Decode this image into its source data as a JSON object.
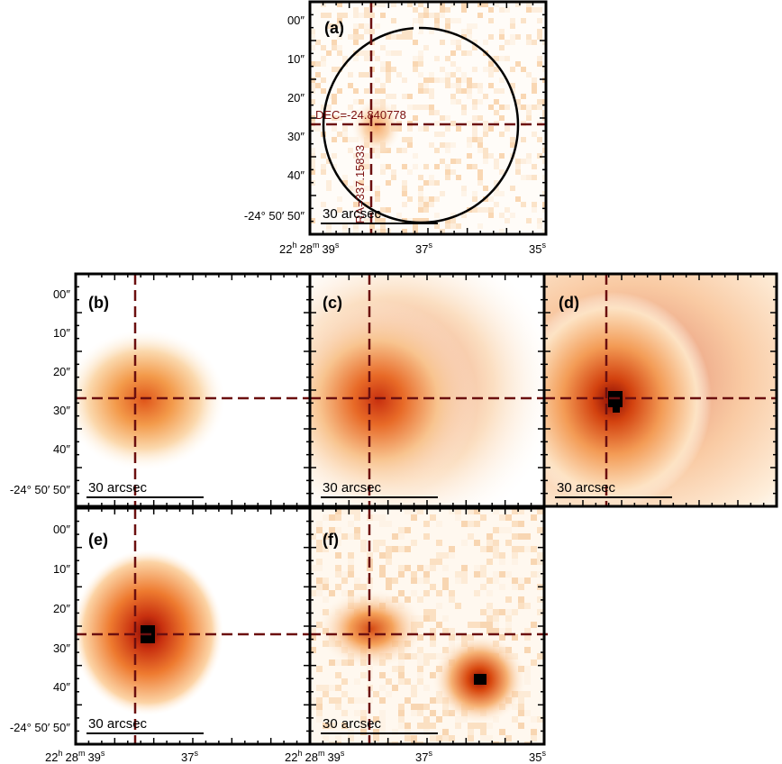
{
  "figure": {
    "ra_label": {
      "h": "22",
      "m": "28",
      "s": "39",
      "hsup": "h",
      "msup": "m",
      "ssup": "s"
    },
    "ra_ticks": [
      {
        "value": "37",
        "sup": "s"
      },
      {
        "value": "35",
        "sup": "s"
      }
    ],
    "dec_ticks": [
      "00″",
      "10″",
      "20″",
      "30″",
      "40″"
    ],
    "dec_last": "-24° 50′ 50″",
    "bottom_row_extra_label": "22ʰ",
    "scale_bar_text": "30 arcsec",
    "crosshair_color": "#6b0f0f",
    "panel_a": {
      "letter": "(a)",
      "dec_annotation": "DEC=-24.840778",
      "ra_annotation": "RA=337.15833"
    },
    "panels": [
      {
        "letter": "(a)"
      },
      {
        "letter": "(b)"
      },
      {
        "letter": "(c)"
      },
      {
        "letter": "(d)"
      },
      {
        "letter": "(e)"
      },
      {
        "letter": "(f)"
      }
    ]
  }
}
